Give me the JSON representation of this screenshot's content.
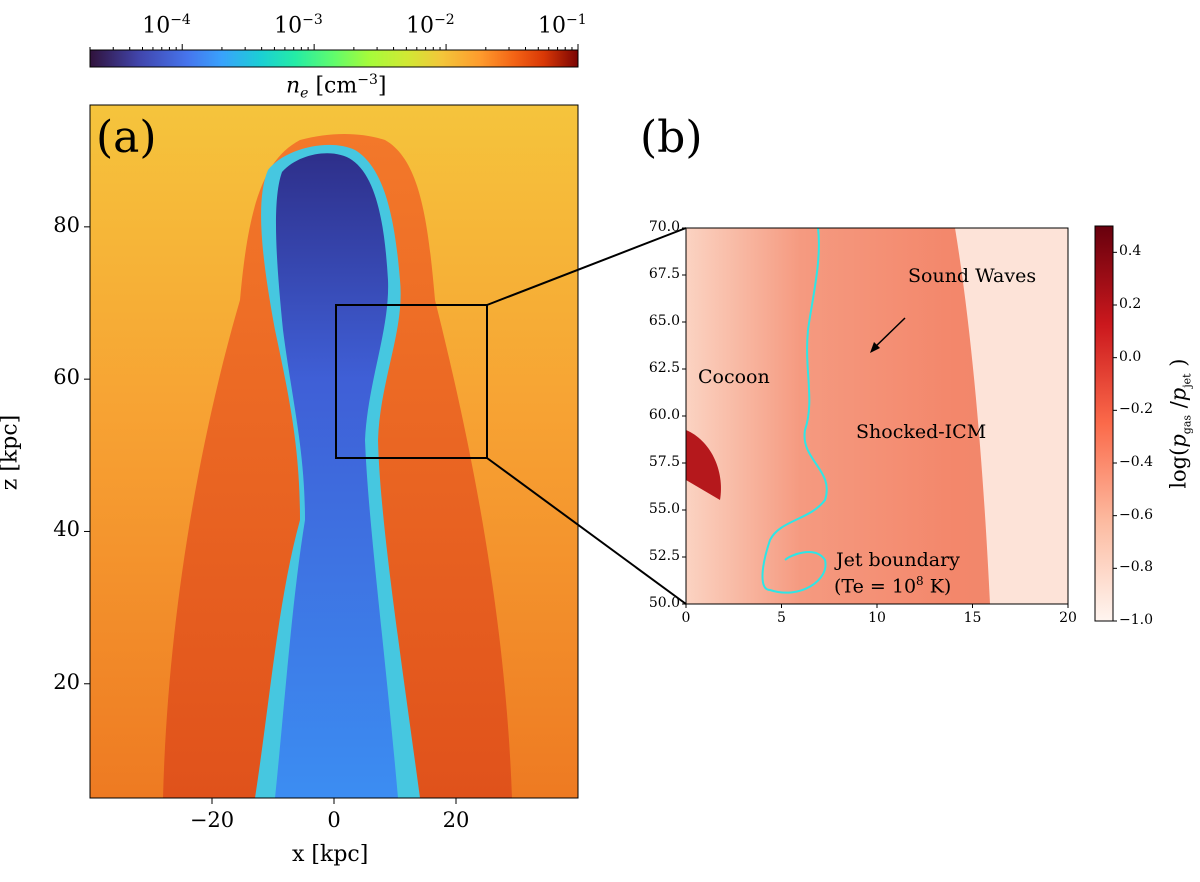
{
  "chart_data": [
    {
      "type": "heatmap",
      "panel_label": "(a)",
      "xlabel": "x [kpc]",
      "ylabel": "z [kpc]",
      "xlim": [
        -40,
        40
      ],
      "ylim": [
        5,
        96
      ],
      "xticks": [
        "−20",
        "0",
        "20"
      ],
      "xtick_values": [
        -20,
        0,
        20
      ],
      "yticks": [
        "20",
        "40",
        "60",
        "80"
      ],
      "ytick_values": [
        20,
        40,
        60,
        80
      ],
      "colorbar": {
        "label_base": "n",
        "label_sub": "e",
        "label_unit": "[cm",
        "label_unit_sup": "−3",
        "label_close": "]",
        "scale": "log",
        "range": [
          2e-05,
          0.1
        ],
        "ticks": [
          {
            "base": "10",
            "exp": "−4",
            "value": 0.0001
          },
          {
            "base": "10",
            "exp": "−3",
            "value": 0.001
          },
          {
            "base": "10",
            "exp": "−2",
            "value": 0.01
          },
          {
            "base": "10",
            "exp": "−1",
            "value": 0.1
          }
        ],
        "colormap": "turbo",
        "orientation": "horizontal",
        "placement": "top"
      },
      "zoom_box": {
        "x": [
          0,
          20
        ],
        "z": [
          50,
          70
        ]
      }
    },
    {
      "type": "heatmap",
      "panel_label": "(b)",
      "xlim": [
        0,
        20
      ],
      "ylim": [
        50,
        70
      ],
      "xticks": [
        "0",
        "5",
        "10",
        "15",
        "20"
      ],
      "xtick_values": [
        0,
        5,
        10,
        15,
        20
      ],
      "yticks": [
        "50.0",
        "52.5",
        "55.0",
        "57.5",
        "60.0",
        "62.5",
        "65.0",
        "67.5",
        "70.0"
      ],
      "ytick_values": [
        50,
        52.5,
        55,
        57.5,
        60,
        62.5,
        65,
        67.5,
        70
      ],
      "annotations": {
        "cocoon": "Cocoon",
        "shocked_icm": "Shocked-ICM",
        "sound_waves": "Sound Waves",
        "jet_boundary": "Jet boundary",
        "te_prefix": "(Te = 10",
        "te_exp": "8",
        "te_suffix": " K)"
      },
      "contour": {
        "quantity": "Te",
        "level": "1e8 K",
        "color": "#2ee6e6"
      },
      "colorbar": {
        "label_prefix": "log(",
        "label_p1": "p",
        "label_sub1": "gas",
        "label_mid": " /",
        "label_p2": "p",
        "label_sub2": "jet",
        "label_suffix": " )",
        "range": [
          -1.0,
          0.5
        ],
        "ticks": [
          "0.4",
          "0.2",
          "0.0",
          "−0.2",
          "−0.4",
          "−0.6",
          "−0.8",
          "−1.0"
        ],
        "tick_values": [
          0.4,
          0.2,
          0.0,
          -0.2,
          -0.4,
          -0.6,
          -0.8,
          -1.0
        ],
        "colormap": "Reds",
        "orientation": "vertical",
        "placement": "right"
      }
    }
  ]
}
